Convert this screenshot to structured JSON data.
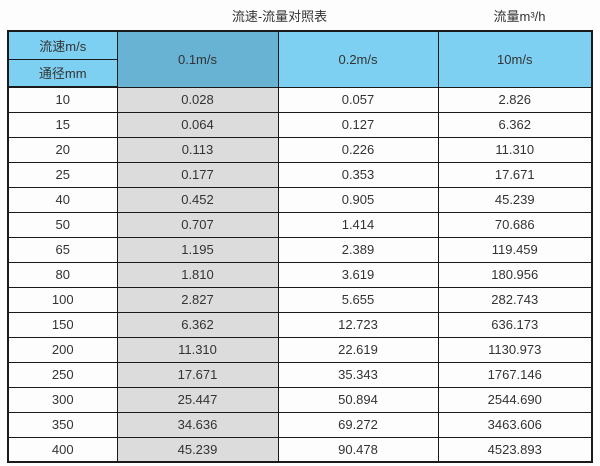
{
  "page": {
    "title": "流速-流量对照表",
    "unit_label": "流量m³/h"
  },
  "table": {
    "corner_top": "流速m/s",
    "corner_bottom": "通径mm",
    "velocity_headers": [
      "0.1m/s",
      "0.2m/s",
      "10m/s"
    ],
    "rows": [
      {
        "diameter": "10",
        "values": [
          "0.028",
          "0.057",
          "2.826"
        ]
      },
      {
        "diameter": "15",
        "values": [
          "0.064",
          "0.127",
          "6.362"
        ]
      },
      {
        "diameter": "20",
        "values": [
          "0.113",
          "0.226",
          "11.310"
        ]
      },
      {
        "diameter": "25",
        "values": [
          "0.177",
          "0.353",
          "17.671"
        ]
      },
      {
        "diameter": "40",
        "values": [
          "0.452",
          "0.905",
          "45.239"
        ]
      },
      {
        "diameter": "50",
        "values": [
          "0.707",
          "1.414",
          "70.686"
        ]
      },
      {
        "diameter": "65",
        "values": [
          "1.195",
          "2.389",
          "119.459"
        ]
      },
      {
        "diameter": "80",
        "values": [
          "1.810",
          "3.619",
          "180.956"
        ]
      },
      {
        "diameter": "100",
        "values": [
          "2.827",
          "5.655",
          "282.743"
        ]
      },
      {
        "diameter": "150",
        "values": [
          "6.362",
          "12.723",
          "636.173"
        ]
      },
      {
        "diameter": "200",
        "values": [
          "11.310",
          "22.619",
          "1130.973"
        ]
      },
      {
        "diameter": "250",
        "values": [
          "17.671",
          "35.343",
          "1767.146"
        ]
      },
      {
        "diameter": "300",
        "values": [
          "25.447",
          "50.894",
          "2544.690"
        ]
      },
      {
        "diameter": "350",
        "values": [
          "34.636",
          "69.272",
          "3463.606"
        ]
      },
      {
        "diameter": "400",
        "values": [
          "45.239",
          "90.478",
          "4523.893"
        ]
      }
    ]
  },
  "colors": {
    "header_light_blue": "#7ed0f2",
    "header_dark_blue": "#68b2d4",
    "highlight_grey": "#dcdcdc",
    "border": "#1a1a1a",
    "text": "#333333",
    "background": "#fdfdfd"
  },
  "chart_data": {
    "type": "table",
    "title": "流速-流量对照表",
    "unit_label": "流量m³/h",
    "columns": [
      "通径mm",
      "0.1m/s",
      "0.2m/s",
      "10m/s"
    ],
    "rows": [
      [
        10,
        0.028,
        0.057,
        2.826
      ],
      [
        15,
        0.064,
        0.127,
        6.362
      ],
      [
        20,
        0.113,
        0.226,
        11.31
      ],
      [
        25,
        0.177,
        0.353,
        17.671
      ],
      [
        40,
        0.452,
        0.905,
        45.239
      ],
      [
        50,
        0.707,
        1.414,
        70.686
      ],
      [
        65,
        1.195,
        2.389,
        119.459
      ],
      [
        80,
        1.81,
        3.619,
        180.956
      ],
      [
        100,
        2.827,
        5.655,
        282.743
      ],
      [
        150,
        6.362,
        12.723,
        636.173
      ],
      [
        200,
        11.31,
        22.619,
        1130.973
      ],
      [
        250,
        17.671,
        35.343,
        1767.146
      ],
      [
        300,
        25.447,
        50.894,
        2544.69
      ],
      [
        350,
        34.636,
        69.272,
        3463.606
      ],
      [
        400,
        45.239,
        90.478,
        4523.893
      ]
    ]
  }
}
